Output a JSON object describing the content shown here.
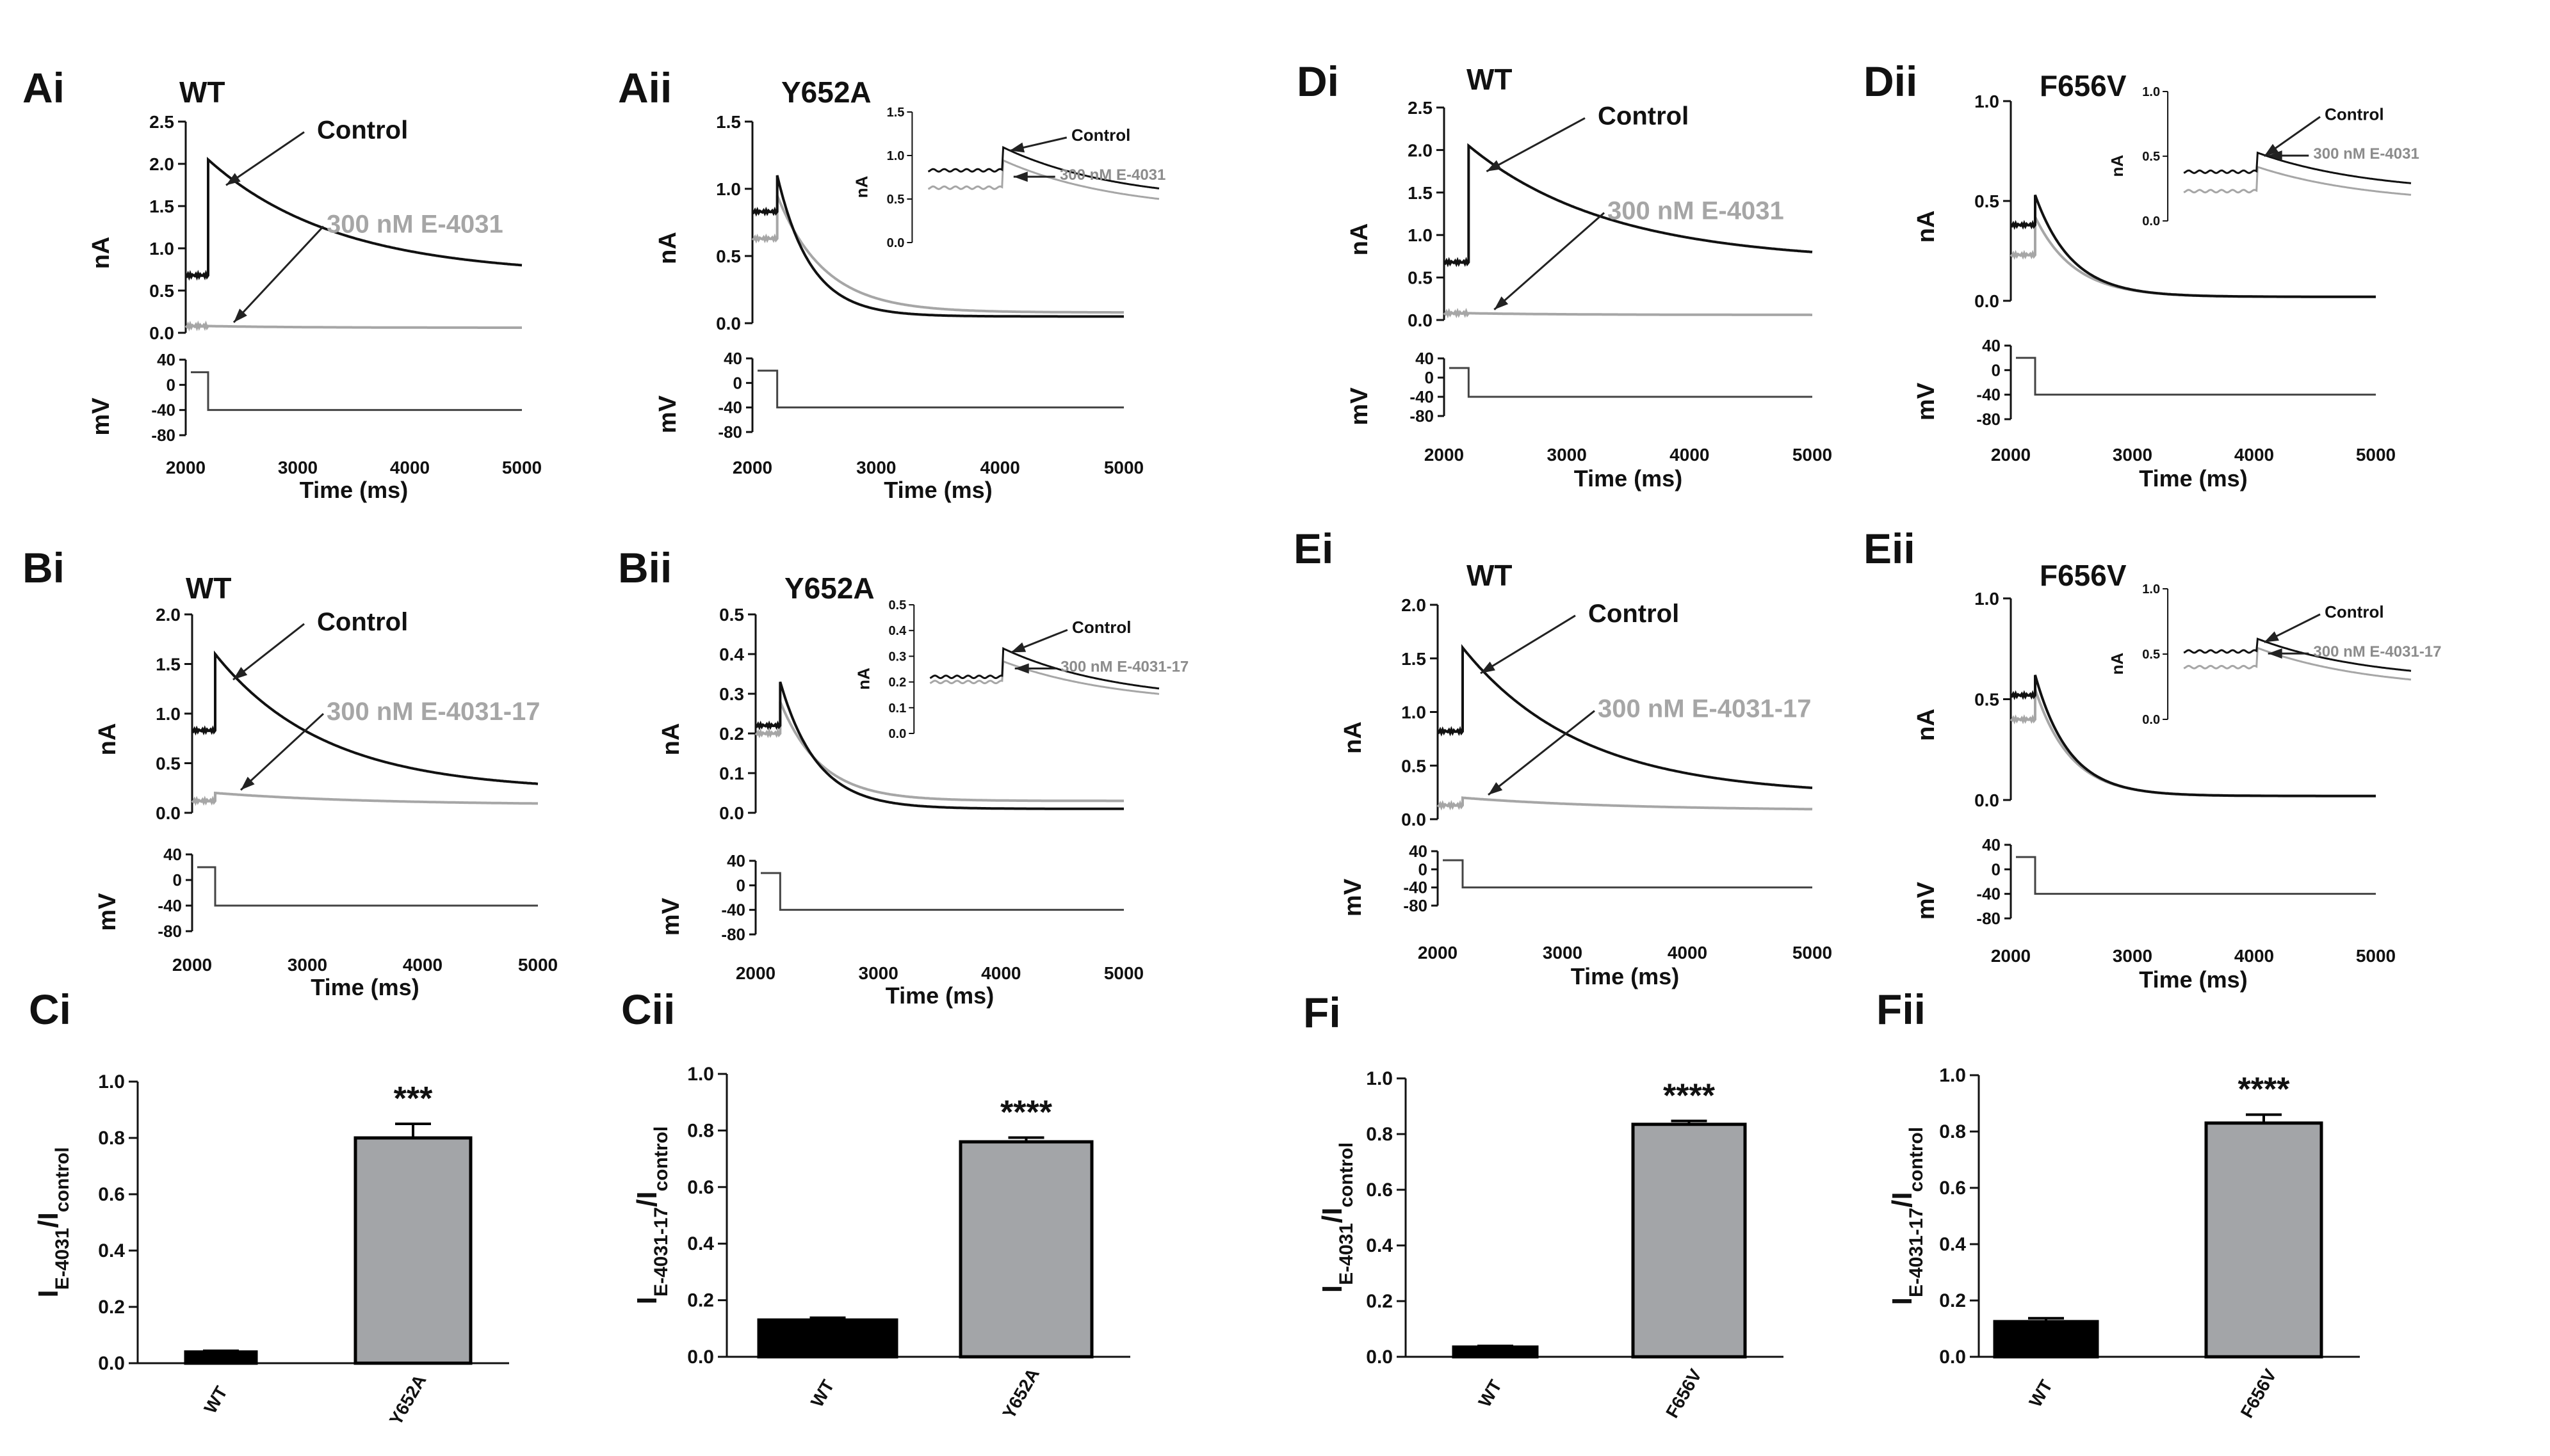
{
  "figure": {
    "colors": {
      "control": "#111111",
      "drug": "#a6a6a6",
      "bar_wt": "#000000",
      "bar_mut": "#a3a5a8",
      "axis": "#111111"
    }
  },
  "chart_data": [
    {
      "id": "Ai",
      "type": "line",
      "panel_label": "Ai",
      "title": "WT",
      "mutant": false,
      "xlabel": "Time (ms)",
      "xlim": [
        2000,
        5000
      ],
      "xticks": [
        "2000",
        "3000",
        "4000",
        "5000"
      ],
      "ylabel": "nA",
      "ylim": [
        0,
        2.5
      ],
      "yticks": [
        "0.0",
        "0.5",
        "1.0",
        "1.5",
        "2.0",
        "2.5"
      ],
      "vlabel": "mV",
      "vticks": [
        "40",
        "0",
        "-40",
        "-80"
      ],
      "series": [
        {
          "name": "Control",
          "baseline": 0.68,
          "peak": 2.05,
          "end": 0.68,
          "tau": 1150
        },
        {
          "name": "300 nM E-4031",
          "baseline": 0.08,
          "peak": 0.08,
          "end": 0.06,
          "tau": 800
        }
      ],
      "annotations": [
        "Control",
        "300 nM E-4031"
      ],
      "inset": null
    },
    {
      "id": "Aii",
      "type": "line",
      "panel_label": "Aii",
      "title": "Y652A",
      "mutant": true,
      "xlabel": "Time (ms)",
      "xlim": [
        2000,
        5000
      ],
      "xticks": [
        "2000",
        "3000",
        "4000",
        "5000"
      ],
      "ylabel": "nA",
      "ylim": [
        0,
        1.5
      ],
      "yticks": [
        "0.0",
        "0.5",
        "1.0",
        "1.5"
      ],
      "vlabel": "mV",
      "vticks": [
        "40",
        "0",
        "-40",
        "-80"
      ],
      "series": [
        {
          "name": "Control",
          "baseline": 0.83,
          "peak": 1.1,
          "end": 0.05,
          "tau": 270
        },
        {
          "name": "300 nM E-4031",
          "baseline": 0.63,
          "peak": 0.95,
          "end": 0.08,
          "tau": 380
        }
      ],
      "annotations": [],
      "inset": {
        "ylabel": "nA",
        "ylim": [
          0,
          1.5
        ],
        "yticks": [
          "0.0",
          "0.5",
          "1.0",
          "1.5"
        ],
        "labels": [
          "Control",
          "300 nM E-4031"
        ]
      }
    },
    {
      "id": "Bi",
      "type": "line",
      "panel_label": "Bi",
      "title": "WT",
      "mutant": false,
      "xlabel": "Time (ms)",
      "xlim": [
        2000,
        5000
      ],
      "xticks": [
        "2000",
        "3000",
        "4000",
        "5000"
      ],
      "ylabel": "nA",
      "ylim": [
        0,
        2.0
      ],
      "yticks": [
        "0.0",
        "0.5",
        "1.0",
        "1.5",
        "2.0"
      ],
      "vlabel": "mV",
      "vticks": [
        "40",
        "0",
        "-40",
        "-80"
      ],
      "series": [
        {
          "name": "Control",
          "baseline": 0.83,
          "peak": 1.6,
          "end": 0.22,
          "tau": 950
        },
        {
          "name": "300 nM E-4031-17",
          "baseline": 0.12,
          "peak": 0.2,
          "end": 0.08,
          "tau": 1300
        }
      ],
      "annotations": [
        "Control",
        "300 nM E-4031-17"
      ],
      "inset": null
    },
    {
      "id": "Bii",
      "type": "line",
      "panel_label": "Bii",
      "title": "Y652A",
      "mutant": true,
      "xlabel": "Time (ms)",
      "xlim": [
        2000,
        5000
      ],
      "xticks": [
        "2000",
        "3000",
        "4000",
        "5000"
      ],
      "ylabel": "nA",
      "ylim": [
        0,
        0.5
      ],
      "yticks": [
        "0.0",
        "0.1",
        "0.2",
        "0.3",
        "0.4",
        "0.5"
      ],
      "vlabel": "mV",
      "vticks": [
        "40",
        "0",
        "-40",
        "-80"
      ],
      "series": [
        {
          "name": "Control",
          "baseline": 0.22,
          "peak": 0.33,
          "end": 0.01,
          "tau": 300
        },
        {
          "name": "300 nM E-4031-17",
          "baseline": 0.2,
          "peak": 0.28,
          "end": 0.03,
          "tau": 330
        }
      ],
      "annotations": [],
      "inset": {
        "ylabel": "nA",
        "ylim": [
          0,
          0.5
        ],
        "yticks": [
          "0.0",
          "0.1",
          "0.2",
          "0.3",
          "0.4",
          "0.5"
        ],
        "labels": [
          "Control",
          "300 nM E-4031-17"
        ]
      }
    },
    {
      "id": "Ci",
      "type": "bar",
      "panel_label": "Ci",
      "categories": [
        "WT",
        "Y652A"
      ],
      "values": [
        0.04,
        0.8
      ],
      "errors": [
        0.004,
        0.05
      ],
      "ylim": [
        0,
        1.0
      ],
      "yticks": [
        "0.0",
        "0.2",
        "0.4",
        "0.6",
        "0.8",
        "1.0"
      ],
      "ylabel": {
        "main": "I",
        "sub1": "E-4031",
        "sep": "/I",
        "sub2": "control"
      },
      "significance": "***"
    },
    {
      "id": "Cii",
      "type": "bar",
      "panel_label": "Cii",
      "categories": [
        "WT",
        "Y652A"
      ],
      "values": [
        0.13,
        0.76
      ],
      "errors": [
        0.008,
        0.015
      ],
      "ylim": [
        0,
        1.0
      ],
      "yticks": [
        "0.0",
        "0.2",
        "0.4",
        "0.6",
        "0.8",
        "1.0"
      ],
      "ylabel": {
        "main": "I",
        "sub1": "E-4031-17",
        "sep": "/I",
        "sub2": "control"
      },
      "significance": "****"
    },
    {
      "id": "Di",
      "type": "line",
      "panel_label": "Di",
      "title": "WT",
      "mutant": false,
      "xlabel": "Time (ms)",
      "xlim": [
        2000,
        5000
      ],
      "xticks": [
        "2000",
        "3000",
        "4000",
        "5000"
      ],
      "ylabel": "nA",
      "ylim": [
        0,
        2.5
      ],
      "yticks": [
        "0.0",
        "0.5",
        "1.0",
        "1.5",
        "2.0",
        "2.5"
      ],
      "vlabel": "mV",
      "vticks": [
        "40",
        "0",
        "-40",
        "-80"
      ],
      "series": [
        {
          "name": "Control",
          "baseline": 0.68,
          "peak": 2.05,
          "end": 0.68,
          "tau": 1150
        },
        {
          "name": "300 nM E-4031",
          "baseline": 0.08,
          "peak": 0.08,
          "end": 0.06,
          "tau": 800
        }
      ],
      "annotations": [
        "Control",
        "300 nM E-4031"
      ],
      "inset": null
    },
    {
      "id": "Dii",
      "type": "line",
      "panel_label": "Dii",
      "title": "F656V",
      "mutant": true,
      "xlabel": "Time (ms)",
      "xlim": [
        2000,
        5000
      ],
      "xticks": [
        "2000",
        "3000",
        "4000",
        "5000"
      ],
      "ylabel": "nA",
      "ylim": [
        0,
        1.0
      ],
      "yticks": [
        "0.0",
        "0.5",
        "1.0"
      ],
      "vlabel": "mV",
      "vticks": [
        "40",
        "0",
        "-40",
        "-80"
      ],
      "series": [
        {
          "name": "Control",
          "baseline": 0.38,
          "peak": 0.53,
          "end": 0.02,
          "tau": 300
        },
        {
          "name": "300 nM E-4031",
          "baseline": 0.23,
          "peak": 0.42,
          "end": 0.02,
          "tau": 320
        }
      ],
      "annotations": [],
      "inset": {
        "ylabel": "nA",
        "ylim": [
          0,
          1.0
        ],
        "yticks": [
          "0.0",
          "0.5",
          "1.0"
        ],
        "labels": [
          "Control",
          "300 nM E-4031"
        ]
      }
    },
    {
      "id": "Ei",
      "type": "line",
      "panel_label": "Ei",
      "title": "WT",
      "mutant": false,
      "xlabel": "Time (ms)",
      "xlim": [
        2000,
        5000
      ],
      "xticks": [
        "2000",
        "3000",
        "4000",
        "5000"
      ],
      "ylabel": "nA",
      "ylim": [
        0,
        2.0
      ],
      "yticks": [
        "0.0",
        "0.5",
        "1.0",
        "1.5",
        "2.0"
      ],
      "vlabel": "mV",
      "vticks": [
        "40",
        "0",
        "-40",
        "-80"
      ],
      "series": [
        {
          "name": "Control",
          "baseline": 0.82,
          "peak": 1.6,
          "end": 0.22,
          "tau": 950
        },
        {
          "name": "300 nM E-4031-17",
          "baseline": 0.13,
          "peak": 0.2,
          "end": 0.08,
          "tau": 1300
        }
      ],
      "annotations": [
        "Control",
        "300 nM E-4031-17"
      ],
      "inset": null
    },
    {
      "id": "Eii",
      "type": "line",
      "panel_label": "Eii",
      "title": "F656V",
      "mutant": true,
      "xlabel": "Time (ms)",
      "xlim": [
        2000,
        5000
      ],
      "xticks": [
        "2000",
        "3000",
        "4000",
        "5000"
      ],
      "ylabel": "nA",
      "ylim": [
        0,
        1.0
      ],
      "yticks": [
        "0.0",
        "0.5",
        "1.0"
      ],
      "vlabel": "mV",
      "vticks": [
        "40",
        "0",
        "-40",
        "-80"
      ],
      "series": [
        {
          "name": "Control",
          "baseline": 0.52,
          "peak": 0.62,
          "end": 0.02,
          "tau": 280
        },
        {
          "name": "300 nM E-4031-17",
          "baseline": 0.4,
          "peak": 0.55,
          "end": 0.02,
          "tau": 290
        }
      ],
      "annotations": [],
      "inset": {
        "ylabel": "nA",
        "ylim": [
          0,
          1.0
        ],
        "yticks": [
          "0.0",
          "0.5",
          "1.0"
        ],
        "labels": [
          "Control",
          "300 nM E-4031-17"
        ]
      }
    },
    {
      "id": "Fi",
      "type": "bar",
      "panel_label": "Fi",
      "categories": [
        "WT",
        "F656V"
      ],
      "values": [
        0.035,
        0.835
      ],
      "errors": [
        0.004,
        0.012
      ],
      "ylim": [
        0,
        1.0
      ],
      "yticks": [
        "0.0",
        "0.2",
        "0.4",
        "0.6",
        "0.8",
        "1.0"
      ],
      "ylabel": {
        "main": "I",
        "sub1": "E-4031",
        "sep": "/I",
        "sub2": "control"
      },
      "significance": "****"
    },
    {
      "id": "Fii",
      "type": "bar",
      "panel_label": "Fii",
      "categories": [
        "WT",
        "F656V"
      ],
      "values": [
        0.125,
        0.83
      ],
      "errors": [
        0.012,
        0.03
      ],
      "ylim": [
        0,
        1.0
      ],
      "yticks": [
        "0.0",
        "0.2",
        "0.4",
        "0.6",
        "0.8",
        "1.0"
      ],
      "ylabel": {
        "main": "I",
        "sub1": "E-4031-17",
        "sep": "/I",
        "sub2": "control"
      },
      "significance": "****"
    }
  ]
}
